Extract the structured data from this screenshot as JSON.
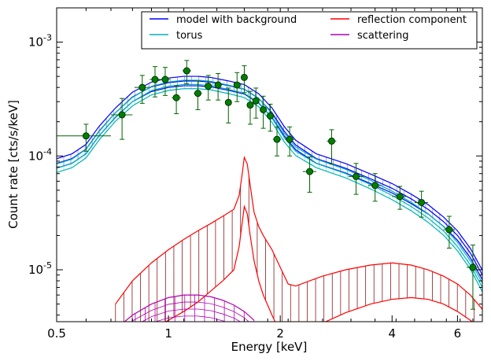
{
  "chart_data": {
    "type": "line",
    "xlabel": "Energy [keV]",
    "ylabel": "Count rate [cts/s/keV]",
    "x_scale": "log",
    "y_scale": "log",
    "xlim": [
      0.5,
      7.0
    ],
    "ylim": [
      3.5e-06,
      0.002
    ],
    "x_ticks": [
      {
        "value": 0.5,
        "label": "0.5"
      },
      {
        "value": 1,
        "label": "1"
      },
      {
        "value": 2,
        "label": "2"
      },
      {
        "value": 4,
        "label": "4"
      },
      {
        "value": 6,
        "label": "6"
      }
    ],
    "y_ticks": [
      {
        "value": 0.001,
        "base": "10",
        "exp": "-3"
      },
      {
        "value": 0.0001,
        "base": "10",
        "exp": "-4"
      },
      {
        "value": 1e-05,
        "base": "10",
        "exp": "-5"
      }
    ],
    "grid": false,
    "legend_position": "top-right",
    "legend_columns": 2,
    "series": [
      {
        "name": "model with background",
        "color": "#0000ff",
        "style": "band",
        "x": [
          0.5,
          0.55,
          0.6,
          0.65,
          0.72,
          0.8,
          0.9,
          1.0,
          1.1,
          1.2,
          1.3,
          1.45,
          1.6,
          1.75,
          1.9,
          2.05,
          2.2,
          2.5,
          3.0,
          3.5,
          4.0,
          4.5,
          5.0,
          5.5,
          6.0,
          6.5,
          7.0
        ],
        "values": [
          8.6e-05,
          9.5e-05,
          0.000115,
          0.000165,
          0.00024,
          0.00033,
          0.000405,
          0.00044,
          0.000455,
          0.000455,
          0.000445,
          0.000415,
          0.000385,
          0.00032,
          0.00024,
          0.000165,
          0.000125,
          9.5e-05,
          7.8e-05,
          6.3e-05,
          5.2e-05,
          4.2e-05,
          3.4e-05,
          2.65e-05,
          2e-05,
          1.4e-05,
          9e-06
        ],
        "band_factor": 1.1
      },
      {
        "name": "torus",
        "color": "#00b4b4",
        "style": "band",
        "x": [
          0.5,
          0.55,
          0.6,
          0.65,
          0.72,
          0.8,
          0.9,
          1.0,
          1.1,
          1.2,
          1.3,
          1.45,
          1.6,
          1.75,
          1.9,
          2.05,
          2.2,
          2.5,
          3.0,
          3.5,
          4.0,
          4.5,
          5.0,
          5.5,
          6.0,
          6.5,
          7.0
        ],
        "values": [
          7.8e-05,
          8.6e-05,
          0.000105,
          0.00015,
          0.00022,
          0.0003,
          0.000375,
          0.00041,
          0.000425,
          0.000425,
          0.000415,
          0.000385,
          0.000355,
          0.000295,
          0.000215,
          0.000145,
          0.00011,
          8.6e-05,
          7e-05,
          5.6e-05,
          4.5e-05,
          3.6e-05,
          2.85e-05,
          2.2e-05,
          1.6e-05,
          1.1e-05,
          7e-06
        ],
        "band_factor": 1.09
      },
      {
        "name": "reflection component",
        "color": "#ff0000",
        "style": "band_hatched",
        "hatch_color": "#8b1a1a",
        "x": [
          0.72,
          0.8,
          0.9,
          1.0,
          1.1,
          1.2,
          1.3,
          1.4,
          1.5,
          1.55,
          1.58,
          1.6,
          1.63,
          1.66,
          1.7,
          1.75,
          1.8,
          1.9,
          2.0,
          2.1,
          2.2,
          2.4,
          2.6,
          3.0,
          3.5,
          4.0,
          4.5,
          5.0,
          5.5,
          6.0,
          6.5,
          7.0
        ],
        "upper": [
          5e-06,
          8e-06,
          1.15e-05,
          1.5e-05,
          1.85e-05,
          2.2e-05,
          2.55e-05,
          2.95e-05,
          3.4e-05,
          4.5e-05,
          7e-05,
          9.7e-05,
          8.5e-05,
          5.5e-05,
          3.2e-05,
          2.4e-05,
          2e-05,
          1.5e-05,
          1.05e-05,
          7.5e-06,
          7.2e-06,
          8e-06,
          8.8e-06,
          1e-05,
          1.1e-05,
          1.15e-05,
          1.1e-05,
          1e-05,
          8.8e-06,
          7.5e-06,
          6e-06,
          4.5e-06
        ],
        "lower": [
          2e-06,
          2.5e-06,
          3e-06,
          3.6e-06,
          4.3e-06,
          5.2e-06,
          6.5e-06,
          8e-06,
          1e-05,
          1.6e-05,
          2.6e-05,
          3.6e-05,
          3.1e-05,
          2e-05,
          1.2e-05,
          8e-06,
          6e-06,
          4e-06,
          2.8e-06,
          2.5e-06,
          2.6e-06,
          3e-06,
          3.4e-06,
          4.2e-06,
          5e-06,
          5.5e-06,
          5.7e-06,
          5.5e-06,
          5e-06,
          4.3e-06,
          3.6e-06,
          3e-06
        ]
      },
      {
        "name": "scattering",
        "color": "#b000b0",
        "style": "band_hatched",
        "hatch_color": "#b000b0",
        "x": [
          0.72,
          0.8,
          0.9,
          1.0,
          1.1,
          1.2,
          1.3,
          1.4,
          1.5,
          1.6,
          1.7
        ],
        "upper": [
          3e-06,
          4e-06,
          5e-06,
          5.7e-06,
          6e-06,
          6e-06,
          5.8e-06,
          5.4e-06,
          4.9e-06,
          4.3e-06,
          3.6e-06
        ],
        "lower": [
          2e-06,
          2.5e-06,
          3e-06,
          3.3e-06,
          3.4e-06,
          3.4e-06,
          3.3e-06,
          3.1e-06,
          2.9e-06,
          2.6e-06,
          2.2e-06
        ]
      }
    ],
    "data_points": {
      "name": "",
      "color": "#006400",
      "x": [
        0.6,
        0.75,
        0.85,
        0.92,
        0.98,
        1.05,
        1.12,
        1.2,
        1.28,
        1.36,
        1.45,
        1.53,
        1.6,
        1.66,
        1.72,
        1.8,
        1.88,
        1.96,
        2.12,
        2.4,
        2.75,
        3.2,
        3.6,
        4.2,
        4.8,
        5.7,
        6.6
      ],
      "y": [
        0.00015,
        0.00023,
        0.0004,
        0.00047,
        0.00047,
        0.000325,
        0.00056,
        0.000355,
        0.00041,
        0.00042,
        0.000295,
        0.00042,
        0.00049,
        0.00028,
        0.000305,
        0.000255,
        0.000225,
        0.00014,
        0.00014,
        7.3e-05,
        0.000135,
        6.6e-05,
        5.5e-05,
        4.4e-05,
        3.9e-05,
        2.25e-05,
        1.05e-05
      ],
      "xerr_lo": [
        0.1,
        0.05,
        0.04,
        0.03,
        0.03,
        0.03,
        0.03,
        0.03,
        0.03,
        0.03,
        0.03,
        0.03,
        0.03,
        0.03,
        0.03,
        0.03,
        0.03,
        0.05,
        0.06,
        0.1,
        0.08,
        0.15,
        0.15,
        0.2,
        0.2,
        0.2,
        0.25
      ],
      "xerr_hi": [
        0.1,
        0.05,
        0.04,
        0.03,
        0.03,
        0.03,
        0.03,
        0.03,
        0.03,
        0.03,
        0.03,
        0.03,
        0.03,
        0.03,
        0.03,
        0.03,
        0.03,
        0.05,
        0.06,
        0.1,
        0.08,
        0.15,
        0.15,
        0.2,
        0.2,
        0.2,
        0.25
      ],
      "yerr_lo": [
        4e-05,
        9e-05,
        0.00011,
        0.00014,
        0.00013,
        9e-05,
        0.00013,
        0.0001,
        0.0001,
        0.00011,
        0.0001,
        0.00012,
        0.00013,
        9e-05,
        9e-05,
        8e-05,
        6e-05,
        4e-05,
        4e-05,
        2.5e-05,
        5e-05,
        2e-05,
        1.5e-05,
        1e-05,
        1e-05,
        7e-06,
        6e-06
      ],
      "yerr_hi": [
        4e-05,
        9e-05,
        0.00011,
        0.00014,
        0.00013,
        9e-05,
        0.00013,
        0.0001,
        0.0001,
        0.00011,
        0.0001,
        0.00012,
        0.00013,
        9e-05,
        9e-05,
        8e-05,
        6e-05,
        4e-05,
        4e-05,
        2.5e-05,
        3.5e-05,
        2e-05,
        1.5e-05,
        1e-05,
        1e-05,
        7e-06,
        6e-06
      ]
    }
  }
}
